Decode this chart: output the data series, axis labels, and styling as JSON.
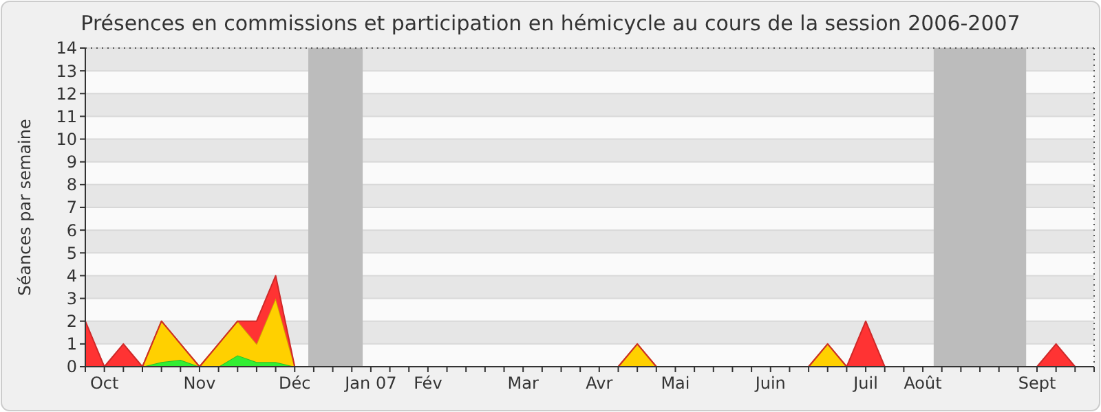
{
  "chart_data": {
    "type": "area",
    "stacked": true,
    "title": "Présences en commissions et participation en hémicycle au cours de la session 2006-2007",
    "ylabel": "Séances par semaine",
    "x": [
      "2006-09-25",
      "2006-10-02",
      "2006-10-09",
      "2006-10-16",
      "2006-10-23",
      "2006-10-30",
      "2006-11-06",
      "2006-11-13",
      "2006-11-20",
      "2006-11-27",
      "2006-12-04",
      "2006-12-11",
      "2006-12-18",
      "2006-12-25",
      "2007-01-01",
      "2007-01-08",
      "2007-01-15",
      "2007-01-22",
      "2007-01-29",
      "2007-02-05",
      "2007-02-12",
      "2007-02-19",
      "2007-02-26",
      "2007-03-05",
      "2007-03-12",
      "2007-03-19",
      "2007-03-26",
      "2007-04-02",
      "2007-04-09",
      "2007-04-16",
      "2007-04-23",
      "2007-04-30",
      "2007-05-07",
      "2007-05-14",
      "2007-05-21",
      "2007-05-28",
      "2007-06-04",
      "2007-06-11",
      "2007-06-18",
      "2007-06-25",
      "2007-07-02",
      "2007-07-09",
      "2007-07-16",
      "2007-07-23",
      "2007-07-30",
      "2007-08-06",
      "2007-08-13",
      "2007-08-20",
      "2007-08-27",
      "2007-09-03",
      "2007-09-10",
      "2007-09-17",
      "2007-09-24",
      "2007-10-01"
    ],
    "series": [
      {
        "color": "#33ee33",
        "values": [
          0,
          0,
          0,
          0,
          0.2,
          0.3,
          0,
          0,
          0.5,
          0.2,
          0.2,
          0,
          0,
          0,
          0,
          0,
          0,
          0,
          0,
          0,
          0,
          0,
          0,
          0,
          0,
          0,
          0,
          0,
          0,
          0,
          0,
          0,
          0,
          0,
          0,
          0,
          0,
          0,
          0,
          0,
          0,
          0,
          0,
          0,
          0,
          0,
          0,
          0,
          0,
          0,
          0,
          0,
          0,
          0
        ]
      },
      {
        "color": "#ffd000",
        "values": [
          0,
          0,
          0,
          0,
          1.8,
          0.7,
          0,
          1,
          1.5,
          0.8,
          2.8,
          0,
          0,
          0,
          0,
          0,
          0,
          0,
          0,
          0,
          0,
          0,
          0,
          0,
          0,
          0,
          0,
          0,
          0,
          1,
          0,
          0,
          0,
          0,
          0,
          0,
          0,
          0,
          0,
          1,
          0,
          0,
          0,
          0,
          0,
          0,
          0,
          0,
          0,
          0,
          0,
          0,
          0,
          0
        ]
      },
      {
        "color": "#ff3333",
        "values": [
          2,
          0,
          1,
          0,
          0,
          0,
          0,
          0,
          0,
          1,
          1,
          0,
          0,
          0,
          0,
          0,
          0,
          0,
          0,
          0,
          0,
          0,
          0,
          0,
          0,
          0,
          0,
          0,
          0,
          0,
          0,
          0,
          0,
          0,
          0,
          0,
          0,
          0,
          0,
          0,
          0,
          2,
          0,
          0,
          0,
          0,
          0,
          0,
          0,
          0,
          0,
          1,
          0,
          0
        ]
      }
    ],
    "xlim": [
      "2006-09-25",
      "2007-10-01"
    ],
    "xticks": [
      {
        "value": "2006-10-02",
        "label": "Oct"
      },
      {
        "value": "2006-11-06",
        "label": "Nov"
      },
      {
        "value": "2006-12-11",
        "label": "Déc"
      },
      {
        "value": "2007-01-08",
        "label": "Jan 07"
      },
      {
        "value": "2007-01-29",
        "label": "Fév"
      },
      {
        "value": "2007-03-05",
        "label": "Mar"
      },
      {
        "value": "2007-04-02",
        "label": "Avr"
      },
      {
        "value": "2007-04-30",
        "label": "Mai"
      },
      {
        "value": "2007-06-04",
        "label": "Juin"
      },
      {
        "value": "2007-07-09",
        "label": "Juil"
      },
      {
        "value": "2007-07-30",
        "label": "Août"
      },
      {
        "value": "2007-09-10",
        "label": "Sept"
      }
    ],
    "ylim": [
      0,
      14
    ],
    "yticks": [
      0,
      1,
      2,
      3,
      4,
      5,
      6,
      7,
      8,
      9,
      10,
      11,
      12,
      13,
      14
    ],
    "grid": "y",
    "bands": [
      {
        "axis": "x",
        "from": "2006-12-16",
        "to": "2007-01-05",
        "color": "#bcbcbc"
      },
      {
        "axis": "x",
        "from": "2007-08-03",
        "to": "2007-09-06",
        "color": "#bcbcbc"
      }
    ]
  }
}
